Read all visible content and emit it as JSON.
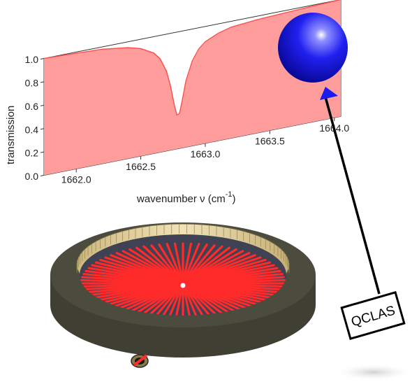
{
  "chart_data": {
    "type": "area",
    "xlabel": "wavenumber ν (cm",
    "xlabel_superscript": "-1",
    "xlabel_suffix": ")",
    "ylabel": "transmission",
    "x_ticks": [
      1662.0,
      1662.5,
      1663.0,
      1663.5,
      1664.0
    ],
    "x_tick_labels": [
      "1662.0",
      "1662.5",
      "1663.0",
      "1663.5",
      "1664.0"
    ],
    "y_ticks": [
      0.0,
      0.2,
      0.4,
      0.6,
      0.8,
      1.0
    ],
    "y_tick_labels": [
      "0.0",
      "0.2",
      "0.4",
      "0.6",
      "0.8",
      "1.0"
    ],
    "xlim": [
      1661.75,
      1664.05
    ],
    "ylim": [
      0.0,
      1.0
    ],
    "series": [
      {
        "x": [
          1661.75,
          1662.0,
          1662.2,
          1662.4,
          1662.5,
          1662.6,
          1662.65,
          1662.7,
          1662.73,
          1662.76,
          1662.78,
          1662.8,
          1662.82,
          1662.85,
          1662.9,
          1662.95,
          1663.0,
          1663.1,
          1663.2,
          1663.4,
          1663.6,
          1663.8,
          1664.05
        ],
        "y": [
          1.0,
          0.99,
          0.98,
          0.95,
          0.92,
          0.86,
          0.8,
          0.68,
          0.55,
          0.38,
          0.29,
          0.3,
          0.4,
          0.57,
          0.73,
          0.82,
          0.87,
          0.92,
          0.95,
          0.97,
          0.98,
          0.99,
          1.0
        ],
        "color": "#ff4d4d",
        "fill": "#ff9d9d"
      }
    ],
    "grid": false
  },
  "qclas": {
    "label": "QCLAS"
  },
  "colors": {
    "laser": "#ff2a2a",
    "ring": "#4a4a3c",
    "sphere": "#1c1cf0",
    "mirrors": "#e3cf98"
  }
}
